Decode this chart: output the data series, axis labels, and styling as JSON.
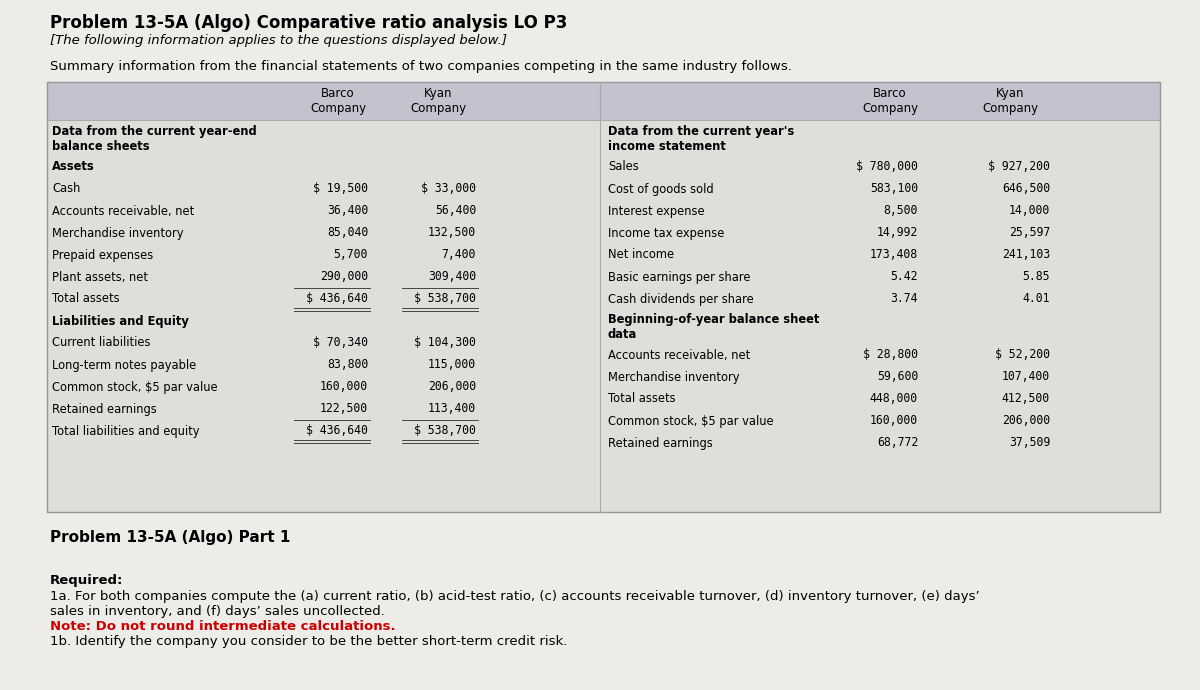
{
  "title": "Problem 13-5A (Algo) Comparative ratio analysis LO P3",
  "subtitle": "[The following information applies to the questions displayed below.]",
  "summary_text": "Summary information from the financial statements of two companies competing in the same industry follows.",
  "bg_color": "#eeece8",
  "table_bg": "#e2e0dc",
  "header_bg": "#c4c5cf",
  "left_sections": [
    {
      "label": "Data from the current year-end\nbalance sheets",
      "bold": true,
      "barco": "",
      "kyan": "",
      "total": false,
      "two_line": true
    },
    {
      "label": "Assets",
      "bold": true,
      "barco": "",
      "kyan": "",
      "total": false,
      "two_line": false
    },
    {
      "label": "Cash",
      "bold": false,
      "barco": "$ 19,500",
      "kyan": "$ 33,000",
      "total": false,
      "two_line": false
    },
    {
      "label": "Accounts receivable, net",
      "bold": false,
      "barco": "36,400",
      "kyan": "56,400",
      "total": false,
      "two_line": false
    },
    {
      "label": "Merchandise inventory",
      "bold": false,
      "barco": "85,040",
      "kyan": "132,500",
      "total": false,
      "two_line": false
    },
    {
      "label": "Prepaid expenses",
      "bold": false,
      "barco": "5,700",
      "kyan": "7,400",
      "total": false,
      "two_line": false
    },
    {
      "label": "Plant assets, net",
      "bold": false,
      "barco": "290,000",
      "kyan": "309,400",
      "total": false,
      "two_line": false
    },
    {
      "label": "Total assets",
      "bold": false,
      "barco": "$ 436,640",
      "kyan": "$ 538,700",
      "total": true,
      "two_line": false
    },
    {
      "label": "Liabilities and Equity",
      "bold": true,
      "barco": "",
      "kyan": "",
      "total": false,
      "two_line": false
    },
    {
      "label": "Current liabilities",
      "bold": false,
      "barco": "$ 70,340",
      "kyan": "$ 104,300",
      "total": false,
      "two_line": false
    },
    {
      "label": "Long-term notes payable",
      "bold": false,
      "barco": "83,800",
      "kyan": "115,000",
      "total": false,
      "two_line": false
    },
    {
      "label": "Common stock, $5 par value",
      "bold": false,
      "barco": "160,000",
      "kyan": "206,000",
      "total": false,
      "two_line": false
    },
    {
      "label": "Retained earnings",
      "bold": false,
      "barco": "122,500",
      "kyan": "113,400",
      "total": false,
      "two_line": false
    },
    {
      "label": "Total liabilities and equity",
      "bold": false,
      "barco": "$ 436,640",
      "kyan": "$ 538,700",
      "total": true,
      "two_line": false
    }
  ],
  "right_sections": [
    {
      "label": "Data from the current year's\nincome statement",
      "bold": true,
      "barco": "",
      "kyan": "",
      "total": false,
      "two_line": true
    },
    {
      "label": "Sales",
      "bold": false,
      "barco": "$ 780,000",
      "kyan": "$ 927,200",
      "total": false,
      "two_line": false
    },
    {
      "label": "Cost of goods sold",
      "bold": false,
      "barco": "583,100",
      "kyan": "646,500",
      "total": false,
      "two_line": false
    },
    {
      "label": "Interest expense",
      "bold": false,
      "barco": "8,500",
      "kyan": "14,000",
      "total": false,
      "two_line": false
    },
    {
      "label": "Income tax expense",
      "bold": false,
      "barco": "14,992",
      "kyan": "25,597",
      "total": false,
      "two_line": false
    },
    {
      "label": "Net income",
      "bold": false,
      "barco": "173,408",
      "kyan": "241,103",
      "total": false,
      "two_line": false
    },
    {
      "label": "Basic earnings per share",
      "bold": false,
      "barco": "5.42",
      "kyan": "5.85",
      "total": false,
      "two_line": false
    },
    {
      "label": "Cash dividends per share",
      "bold": false,
      "barco": "3.74",
      "kyan": "4.01",
      "total": false,
      "two_line": false
    },
    {
      "label": "Beginning-of-year balance sheet\ndata",
      "bold": true,
      "barco": "",
      "kyan": "",
      "total": false,
      "two_line": true
    },
    {
      "label": "Accounts receivable, net",
      "bold": false,
      "barco": "$ 28,800",
      "kyan": "$ 52,200",
      "total": false,
      "two_line": false
    },
    {
      "label": "Merchandise inventory",
      "bold": false,
      "barco": "59,600",
      "kyan": "107,400",
      "total": false,
      "two_line": false
    },
    {
      "label": "Total assets",
      "bold": false,
      "barco": "448,000",
      "kyan": "412,500",
      "total": false,
      "two_line": false
    },
    {
      "label": "Common stock, $5 par value",
      "bold": false,
      "barco": "160,000",
      "kyan": "206,000",
      "total": false,
      "two_line": false
    },
    {
      "label": "Retained earnings",
      "bold": false,
      "barco": "68,772",
      "kyan": "37,509",
      "total": false,
      "two_line": false
    }
  ],
  "part_label": "Problem 13-5A (Algo) Part 1",
  "required_label": "Required:",
  "req_1a": "1a. For both companies compute the (a) current ratio, (b) acid-test ratio, (c) accounts receivable turnover, (d) inventory turnover, (e) days’",
  "req_1a_cont": "sales in inventory, and (f) days’ sales uncollected.",
  "req_note": "Note: Do not round intermediate calculations.",
  "req_1b": "1b. Identify the company you consider to be the better short-term credit risk."
}
